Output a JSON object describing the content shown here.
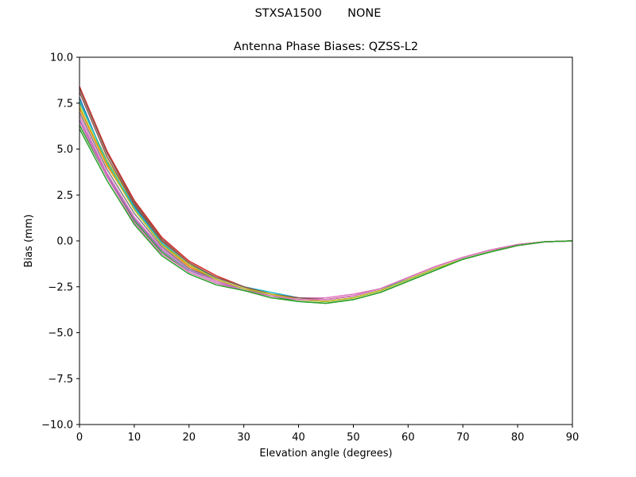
{
  "figure": {
    "suptitle": "STXSA1500       NONE"
  },
  "chart_data": {
    "type": "line",
    "title": "Antenna Phase Biases: QZSS-L2",
    "xlabel": "Elevation angle (degrees)",
    "ylabel": "Bias (mm)",
    "xlim": [
      0,
      90
    ],
    "ylim": [
      -10,
      10
    ],
    "xticks": [
      0,
      10,
      20,
      30,
      40,
      50,
      60,
      70,
      80,
      90
    ],
    "yticks": [
      -10.0,
      -7.5,
      -5.0,
      -2.5,
      0.0,
      2.5,
      5.0,
      7.5,
      10.0
    ],
    "ytick_labels": [
      "−10.0",
      "−7.5",
      "−5.0",
      "−2.5",
      "0.0",
      "2.5",
      "5.0",
      "7.5",
      "10.0"
    ],
    "xtick_labels": [
      "0",
      "10",
      "20",
      "30",
      "40",
      "50",
      "60",
      "70",
      "80",
      "90"
    ],
    "grid": false,
    "legend": "none",
    "x": [
      0,
      5,
      10,
      15,
      20,
      25,
      30,
      35,
      40,
      45,
      50,
      55,
      60,
      65,
      70,
      75,
      80,
      85,
      90
    ],
    "series": [
      {
        "color": "#1f77b4",
        "values": [
          7.8,
          4.2,
          1.9,
          -0.1,
          -1.3,
          -2.0,
          -2.5,
          -2.9,
          -3.2,
          -3.3,
          -3.1,
          -2.7,
          -2.1,
          -1.5,
          -1.0,
          -0.6,
          -0.25,
          -0.05,
          0.0
        ]
      },
      {
        "color": "#ff7f0e",
        "values": [
          7.2,
          4.1,
          1.8,
          -0.2,
          -1.4,
          -2.1,
          -2.6,
          -3.0,
          -3.2,
          -3.3,
          -3.1,
          -2.7,
          -2.1,
          -1.5,
          -1.0,
          -0.6,
          -0.25,
          -0.05,
          0.0
        ]
      },
      {
        "color": "#2ca02c",
        "values": [
          6.3,
          3.5,
          1.1,
          -0.6,
          -1.7,
          -2.3,
          -2.7,
          -3.0,
          -3.3,
          -3.4,
          -3.2,
          -2.8,
          -2.2,
          -1.6,
          -1.0,
          -0.6,
          -0.25,
          -0.05,
          0.0
        ]
      },
      {
        "color": "#d62728",
        "values": [
          8.4,
          4.9,
          2.2,
          0.2,
          -1.1,
          -1.9,
          -2.5,
          -2.9,
          -3.1,
          -3.2,
          -3.0,
          -2.6,
          -2.0,
          -1.4,
          -0.9,
          -0.5,
          -0.2,
          -0.05,
          0.0
        ]
      },
      {
        "color": "#9467bd",
        "values": [
          6.6,
          3.6,
          1.2,
          -0.5,
          -1.6,
          -2.2,
          -2.7,
          -3.0,
          -3.2,
          -3.3,
          -3.1,
          -2.7,
          -2.1,
          -1.5,
          -1.0,
          -0.6,
          -0.25,
          -0.05,
          0.0
        ]
      },
      {
        "color": "#8c564b",
        "values": [
          8.3,
          4.8,
          2.1,
          0.1,
          -1.2,
          -2.0,
          -2.5,
          -2.9,
          -3.1,
          -3.2,
          -3.0,
          -2.6,
          -2.0,
          -1.4,
          -0.9,
          -0.5,
          -0.2,
          -0.05,
          0.0
        ]
      },
      {
        "color": "#e377c2",
        "values": [
          6.8,
          3.7,
          1.3,
          -0.4,
          -1.5,
          -2.2,
          -2.6,
          -2.9,
          -3.1,
          -3.1,
          -2.9,
          -2.6,
          -2.0,
          -1.4,
          -0.9,
          -0.5,
          -0.2,
          -0.05,
          0.0
        ]
      },
      {
        "color": "#7f7f7f",
        "values": [
          7.0,
          3.9,
          1.5,
          -0.3,
          -1.5,
          -2.1,
          -2.6,
          -3.0,
          -3.2,
          -3.3,
          -3.1,
          -2.7,
          -2.1,
          -1.5,
          -1.0,
          -0.6,
          -0.25,
          -0.05,
          0.0
        ]
      },
      {
        "color": "#bcbd22",
        "values": [
          7.5,
          4.4,
          2.0,
          0.0,
          -1.2,
          -2.0,
          -2.5,
          -2.9,
          -3.2,
          -3.3,
          -3.1,
          -2.7,
          -2.1,
          -1.5,
          -1.0,
          -0.6,
          -0.25,
          -0.05,
          0.0
        ]
      },
      {
        "color": "#17becf",
        "values": [
          7.6,
          4.3,
          1.8,
          -0.1,
          -1.3,
          -2.0,
          -2.5,
          -2.8,
          -3.1,
          -3.2,
          -3.0,
          -2.6,
          -2.1,
          -1.5,
          -1.0,
          -0.6,
          -0.25,
          -0.05,
          0.0
        ]
      },
      {
        "color": "#8c564b",
        "values": [
          8.1,
          4.6,
          2.0,
          0.0,
          -1.2,
          -2.0,
          -2.5,
          -2.9,
          -3.1,
          -3.2,
          -3.0,
          -2.6,
          -2.0,
          -1.4,
          -0.9,
          -0.5,
          -0.2,
          -0.05,
          0.0
        ]
      },
      {
        "color": "#bcbd22",
        "values": [
          7.3,
          4.2,
          1.7,
          -0.2,
          -1.3,
          -2.1,
          -2.6,
          -2.9,
          -3.2,
          -3.3,
          -3.1,
          -2.7,
          -2.1,
          -1.5,
          -1.0,
          -0.6,
          -0.25,
          -0.05,
          0.0
        ]
      },
      {
        "color": "#e377c2",
        "values": [
          6.5,
          3.5,
          1.0,
          -0.7,
          -1.7,
          -2.3,
          -2.7,
          -3.0,
          -3.2,
          -3.2,
          -3.0,
          -2.6,
          -2.0,
          -1.4,
          -0.9,
          -0.5,
          -0.2,
          -0.05,
          0.0
        ]
      },
      {
        "color": "#2ca02c",
        "values": [
          6.1,
          3.3,
          0.9,
          -0.8,
          -1.8,
          -2.4,
          -2.7,
          -3.1,
          -3.3,
          -3.4,
          -3.2,
          -2.8,
          -2.2,
          -1.6,
          -1.0,
          -0.6,
          -0.25,
          -0.05,
          0.0
        ]
      }
    ]
  }
}
